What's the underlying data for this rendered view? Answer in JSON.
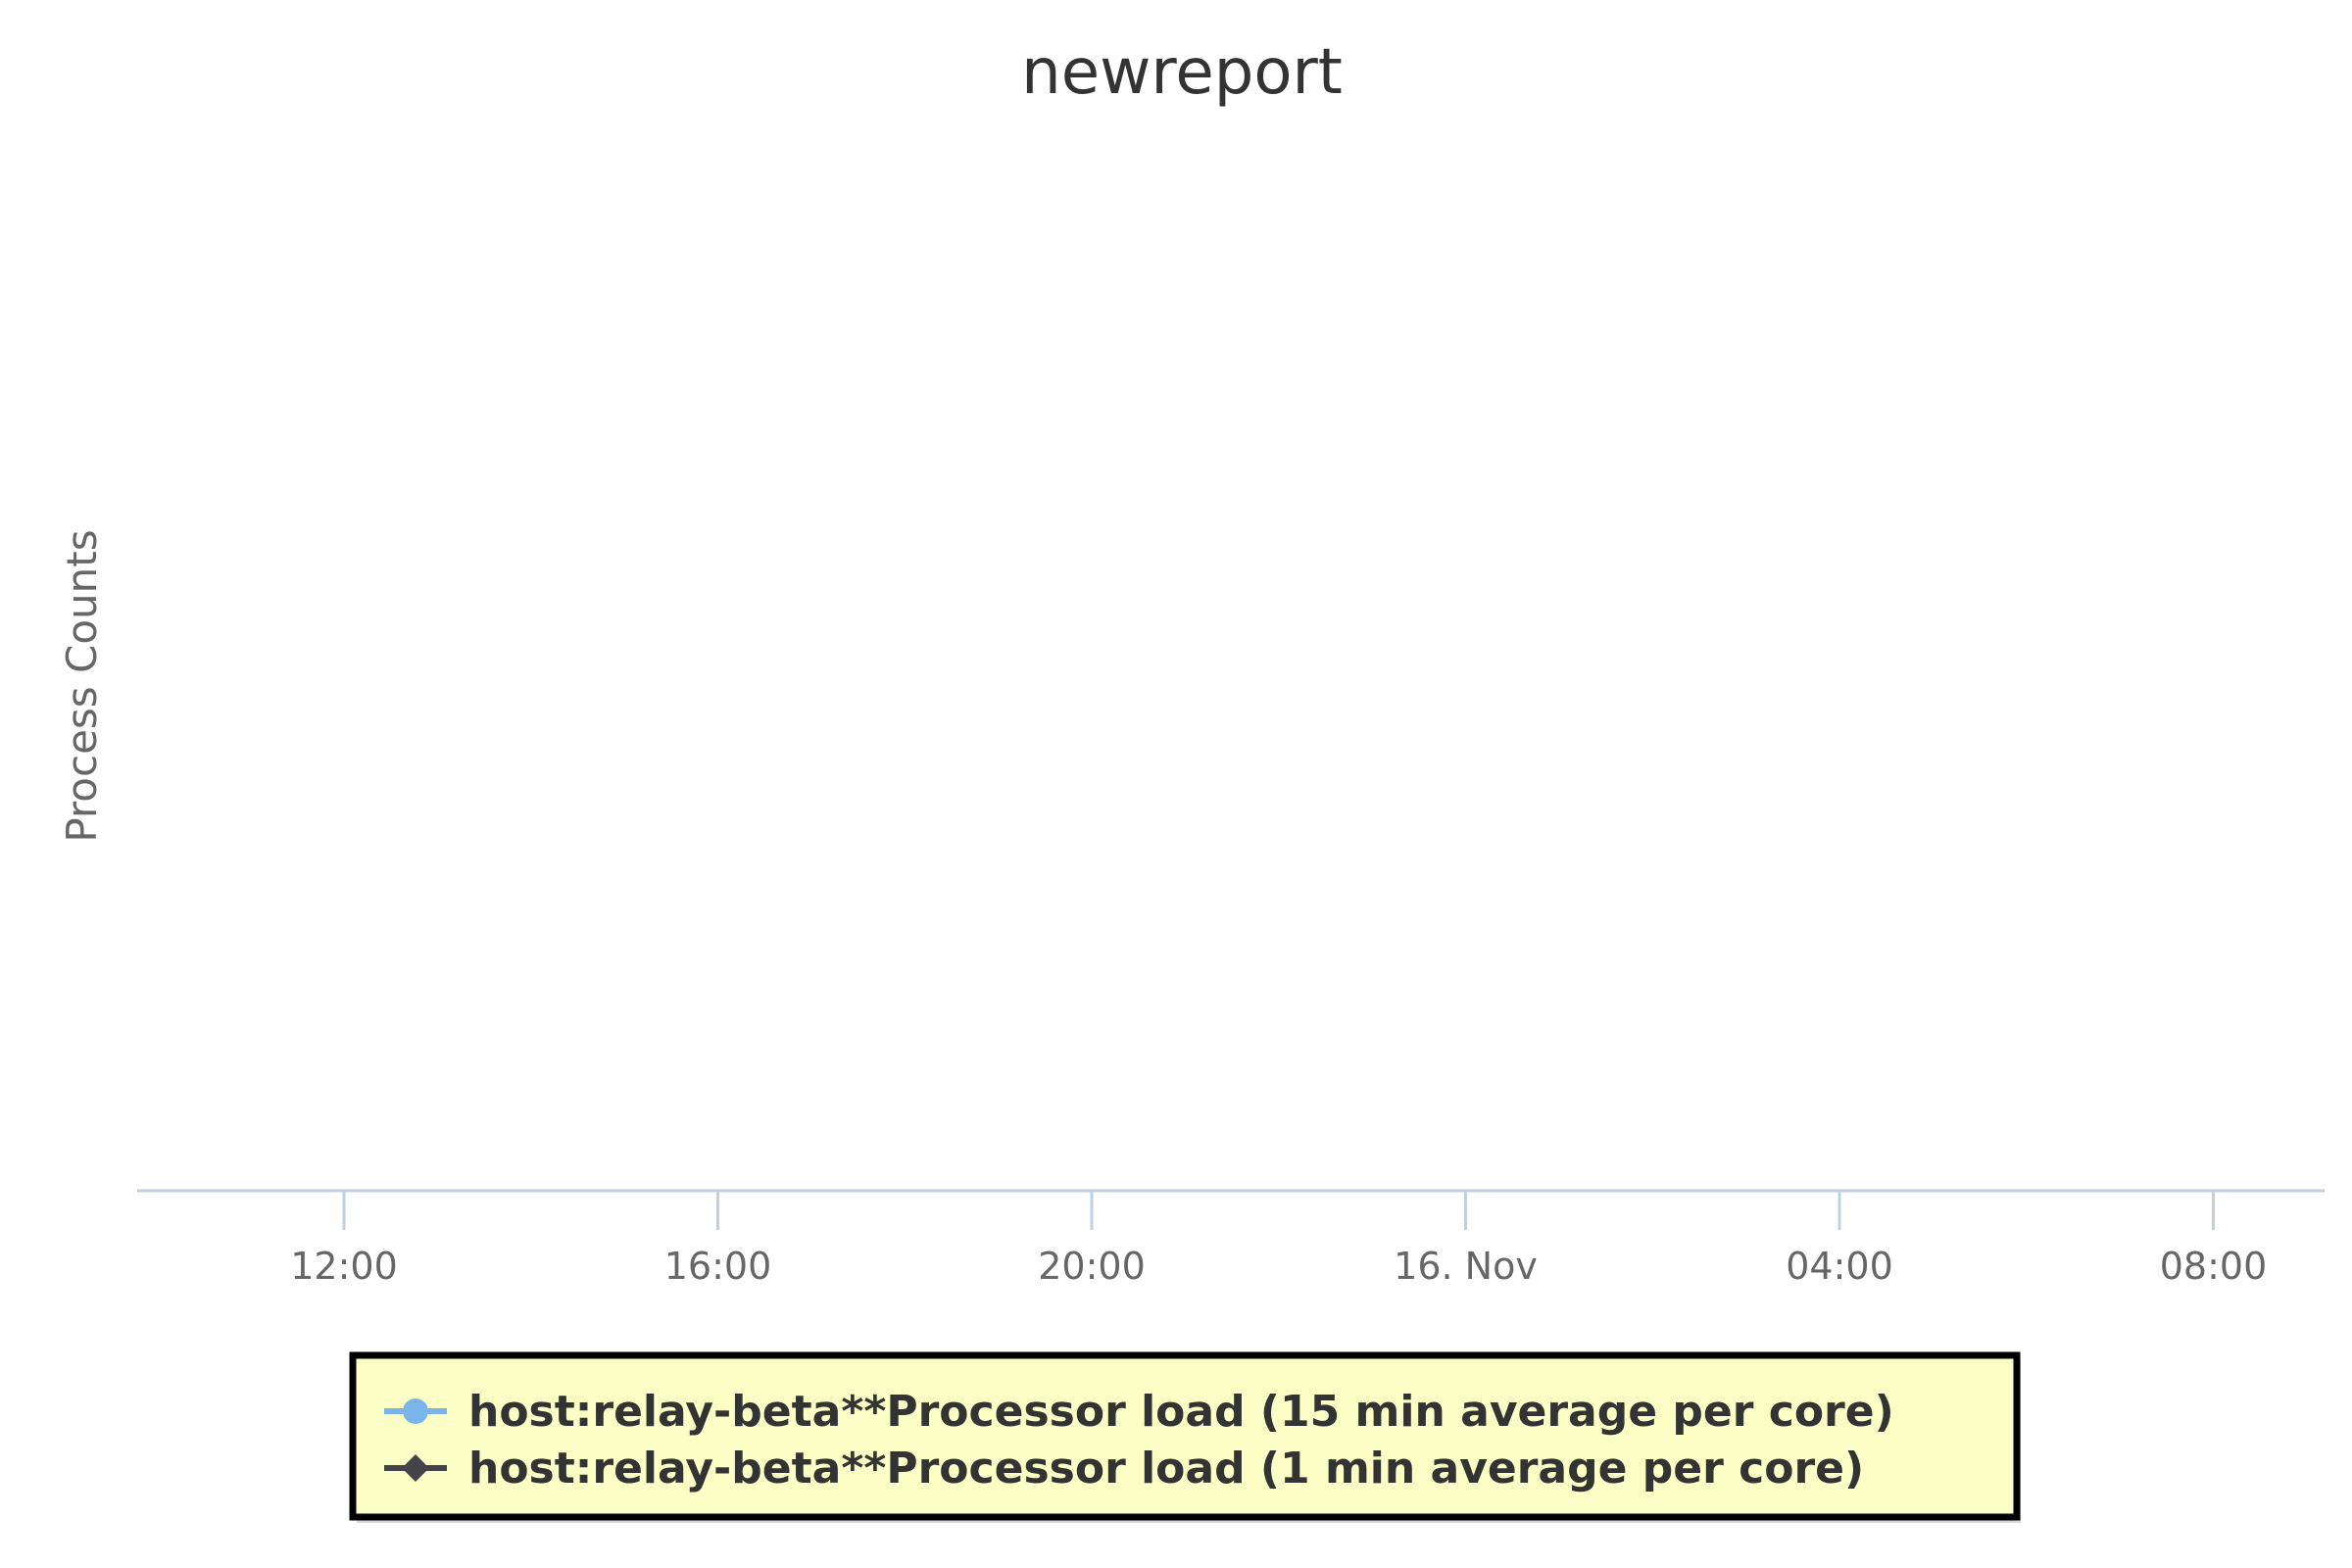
{
  "chart_data": {
    "type": "line",
    "title": "newreport",
    "xlabel": "",
    "ylabel": "Process Counts",
    "x_ticks": [
      "12:00",
      "16:00",
      "20:00",
      "16. Nov",
      "04:00",
      "08:00"
    ],
    "x_range": [
      "15 Nov 09:47",
      "16 Nov 09:17"
    ],
    "grid": false,
    "legend_position": "bottom-center",
    "legend_background": "#fcffc5",
    "series": [
      {
        "name": "host:relay-beta**Processor load (15 min average per core)",
        "color": "#7cb5ec",
        "marker": "circle-icon",
        "x": [],
        "y": []
      },
      {
        "name": "host:relay-beta**Processor load (1 min average per core)",
        "color": "#434348",
        "marker": "diamond-icon",
        "x": [],
        "y": []
      }
    ]
  }
}
